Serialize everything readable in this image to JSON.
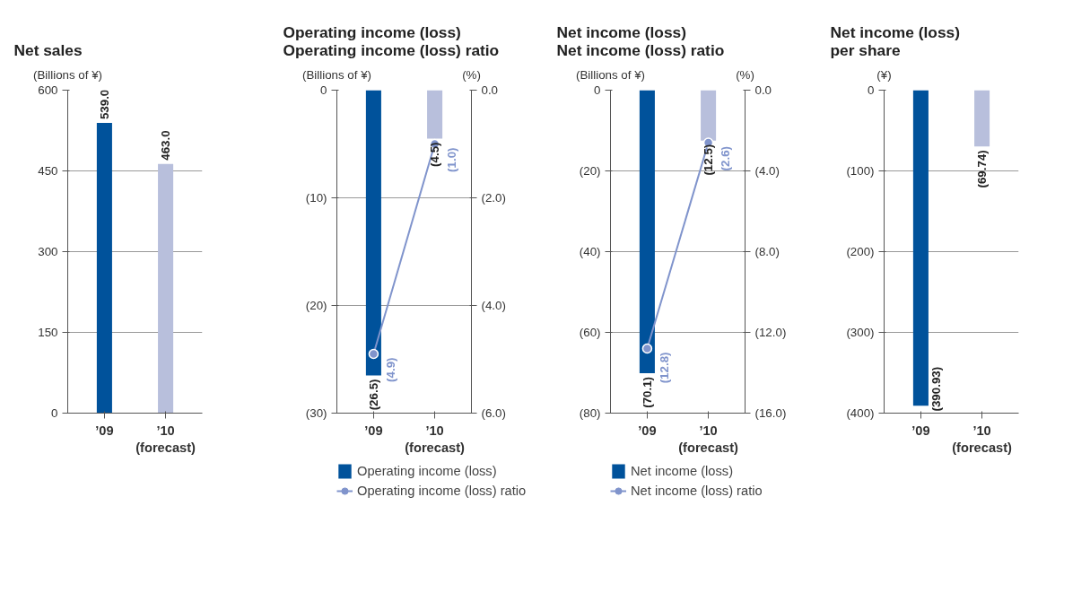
{
  "chart_data": [
    {
      "type": "bar",
      "title": "Net sales",
      "ylabel": "(Billions of ¥)",
      "categories": [
        "’09",
        "’10\n(forecast)"
      ],
      "series": [
        {
          "colors": [
            "#00529b",
            "#b8bfdc"
          ],
          "values": [
            539.0,
            463.0
          ],
          "value_labels": [
            "539.0",
            "463.0"
          ]
        }
      ],
      "ylim": [
        0,
        600
      ],
      "yticks": [
        0,
        150,
        300,
        450,
        600
      ],
      "grid": "y"
    },
    {
      "type": "bar",
      "title": "Operating income (loss)\nOperating income (loss) ratio",
      "ylabel": "(Billions of ¥)",
      "y2label": "(%)",
      "categories": [
        "’09",
        "’10\n(forecast)"
      ],
      "series": [
        {
          "name": "Operating income (loss)",
          "colors": [
            "#00529b",
            "#b8bfdc"
          ],
          "values": [
            -26.5,
            -4.5
          ],
          "value_labels": [
            "(26.5)",
            "(4.5)"
          ]
        },
        {
          "name": "Operating income (loss) ratio",
          "type": "line",
          "axis": "y2",
          "color": "#8094cc",
          "values": [
            -4.9,
            -1.0
          ],
          "value_labels": [
            "(4.9)",
            "(1.0)"
          ]
        }
      ],
      "ylim": [
        -30,
        0
      ],
      "yticks": [
        {
          "value": -30,
          "label": "(30)"
        },
        {
          "value": -20,
          "label": "(20)"
        },
        {
          "value": -10,
          "label": "(10)"
        },
        0
      ],
      "y2lim": [
        -6,
        0
      ],
      "y2ticks": [
        {
          "value": -6,
          "label": "(6.0)"
        },
        {
          "value": -4,
          "label": "(4.0)"
        },
        {
          "value": -2,
          "label": "(2.0)"
        },
        {
          "value": 0,
          "label": "0.0"
        }
      ],
      "grid": "y",
      "legend": "bottom",
      "marker": "circle"
    },
    {
      "type": "bar",
      "title": "Net income (loss)\nNet income (loss) ratio",
      "ylabel": "(Billions of ¥)",
      "y2label": "(%)",
      "categories": [
        "’09",
        "’10\n(forecast)"
      ],
      "series": [
        {
          "name": "Net income (loss)",
          "colors": [
            "#00529b",
            "#b8bfdc"
          ],
          "values": [
            -70.1,
            -12.5
          ],
          "value_labels": [
            "(70.1)",
            "(12.5)"
          ]
        },
        {
          "name": "Net income (loss) ratio",
          "type": "line",
          "axis": "y2",
          "color": "#8094cc",
          "values": [
            -12.8,
            -2.6
          ],
          "value_labels": [
            "(12.8)",
            "(2.6)"
          ]
        }
      ],
      "ylim": [
        -80,
        0
      ],
      "yticks": [
        {
          "value": -80,
          "label": "(80)"
        },
        {
          "value": -60,
          "label": "(60)"
        },
        {
          "value": -40,
          "label": "(40)"
        },
        {
          "value": -20,
          "label": "(20)"
        },
        0
      ],
      "y2lim": [
        -16,
        0
      ],
      "y2ticks": [
        {
          "value": -16,
          "label": "(16.0)"
        },
        {
          "value": -12,
          "label": "(12.0)"
        },
        {
          "value": -8,
          "label": "(8.0)"
        },
        {
          "value": -4,
          "label": "(4.0)"
        },
        {
          "value": 0,
          "label": "0.0"
        }
      ],
      "grid": "y",
      "legend": "bottom",
      "marker": "circle"
    },
    {
      "type": "bar",
      "title": "Net income (loss)\nper share",
      "ylabel": "(¥)",
      "categories": [
        "’09",
        "’10\n(forecast)"
      ],
      "series": [
        {
          "colors": [
            "#00529b",
            "#b8bfdc"
          ],
          "values": [
            -390.93,
            -69.74
          ],
          "value_labels": [
            "(390.93)",
            "(69.74)"
          ]
        }
      ],
      "ylim": [
        -400,
        0
      ],
      "yticks": [
        {
          "value": -400,
          "label": "(400)"
        },
        {
          "value": -300,
          "label": "(300)"
        },
        {
          "value": -200,
          "label": "(200)"
        },
        {
          "value": -100,
          "label": "(100)"
        },
        0
      ],
      "grid": "y"
    }
  ]
}
